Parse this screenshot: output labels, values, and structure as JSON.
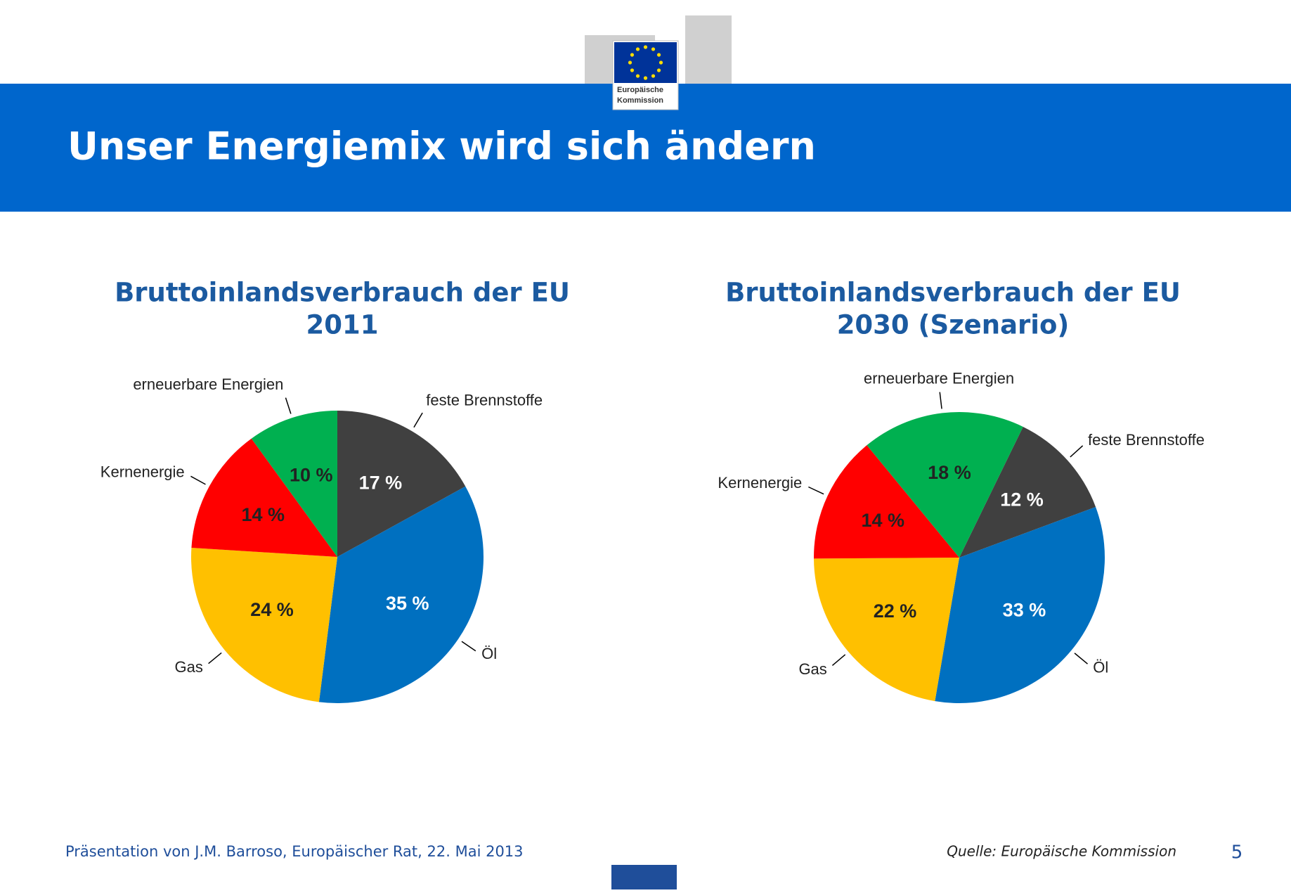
{
  "header": {
    "logo_text": [
      "Europäische",
      "Kommission"
    ],
    "title": "Unser Energiemix wird sich ändern"
  },
  "chart_data": [
    {
      "type": "pie",
      "title": [
        "Bruttoinlandsverbrauch der EU",
        "2011"
      ],
      "start_angle": 0,
      "categories": [
        "feste Brennstoffe",
        "Öl",
        "Gas",
        "Kernenergie",
        "erneuerbare Energien"
      ],
      "values": [
        17,
        35,
        24,
        14,
        10
      ],
      "value_labels": [
        "17 %",
        "35 %",
        "24 %",
        "14 %",
        "10 %"
      ],
      "colors": [
        "#404040",
        "#0070c0",
        "#ffc000",
        "#ff0000",
        "#00b050"
      ]
    },
    {
      "type": "pie",
      "title": [
        "Bruttoinlandsverbrauch der EU",
        "2030 (Szenario)"
      ],
      "start_angle": 26,
      "categories": [
        "feste Brennstoffe",
        "Öl",
        "Gas",
        "Kernenergie",
        "erneuerbare Energien"
      ],
      "values": [
        12,
        33,
        22,
        14,
        18
      ],
      "value_labels": [
        "12 %",
        "33 %",
        "22 %",
        "14 %",
        "18 %"
      ],
      "colors": [
        "#404040",
        "#0070c0",
        "#ffc000",
        "#ff0000",
        "#00b050"
      ]
    }
  ],
  "footer": {
    "left": "Präsentation von J.M. Barroso, Europäischer Rat, 22. Mai 2013",
    "source": "Quelle: Europäische Kommission",
    "page": "5"
  }
}
